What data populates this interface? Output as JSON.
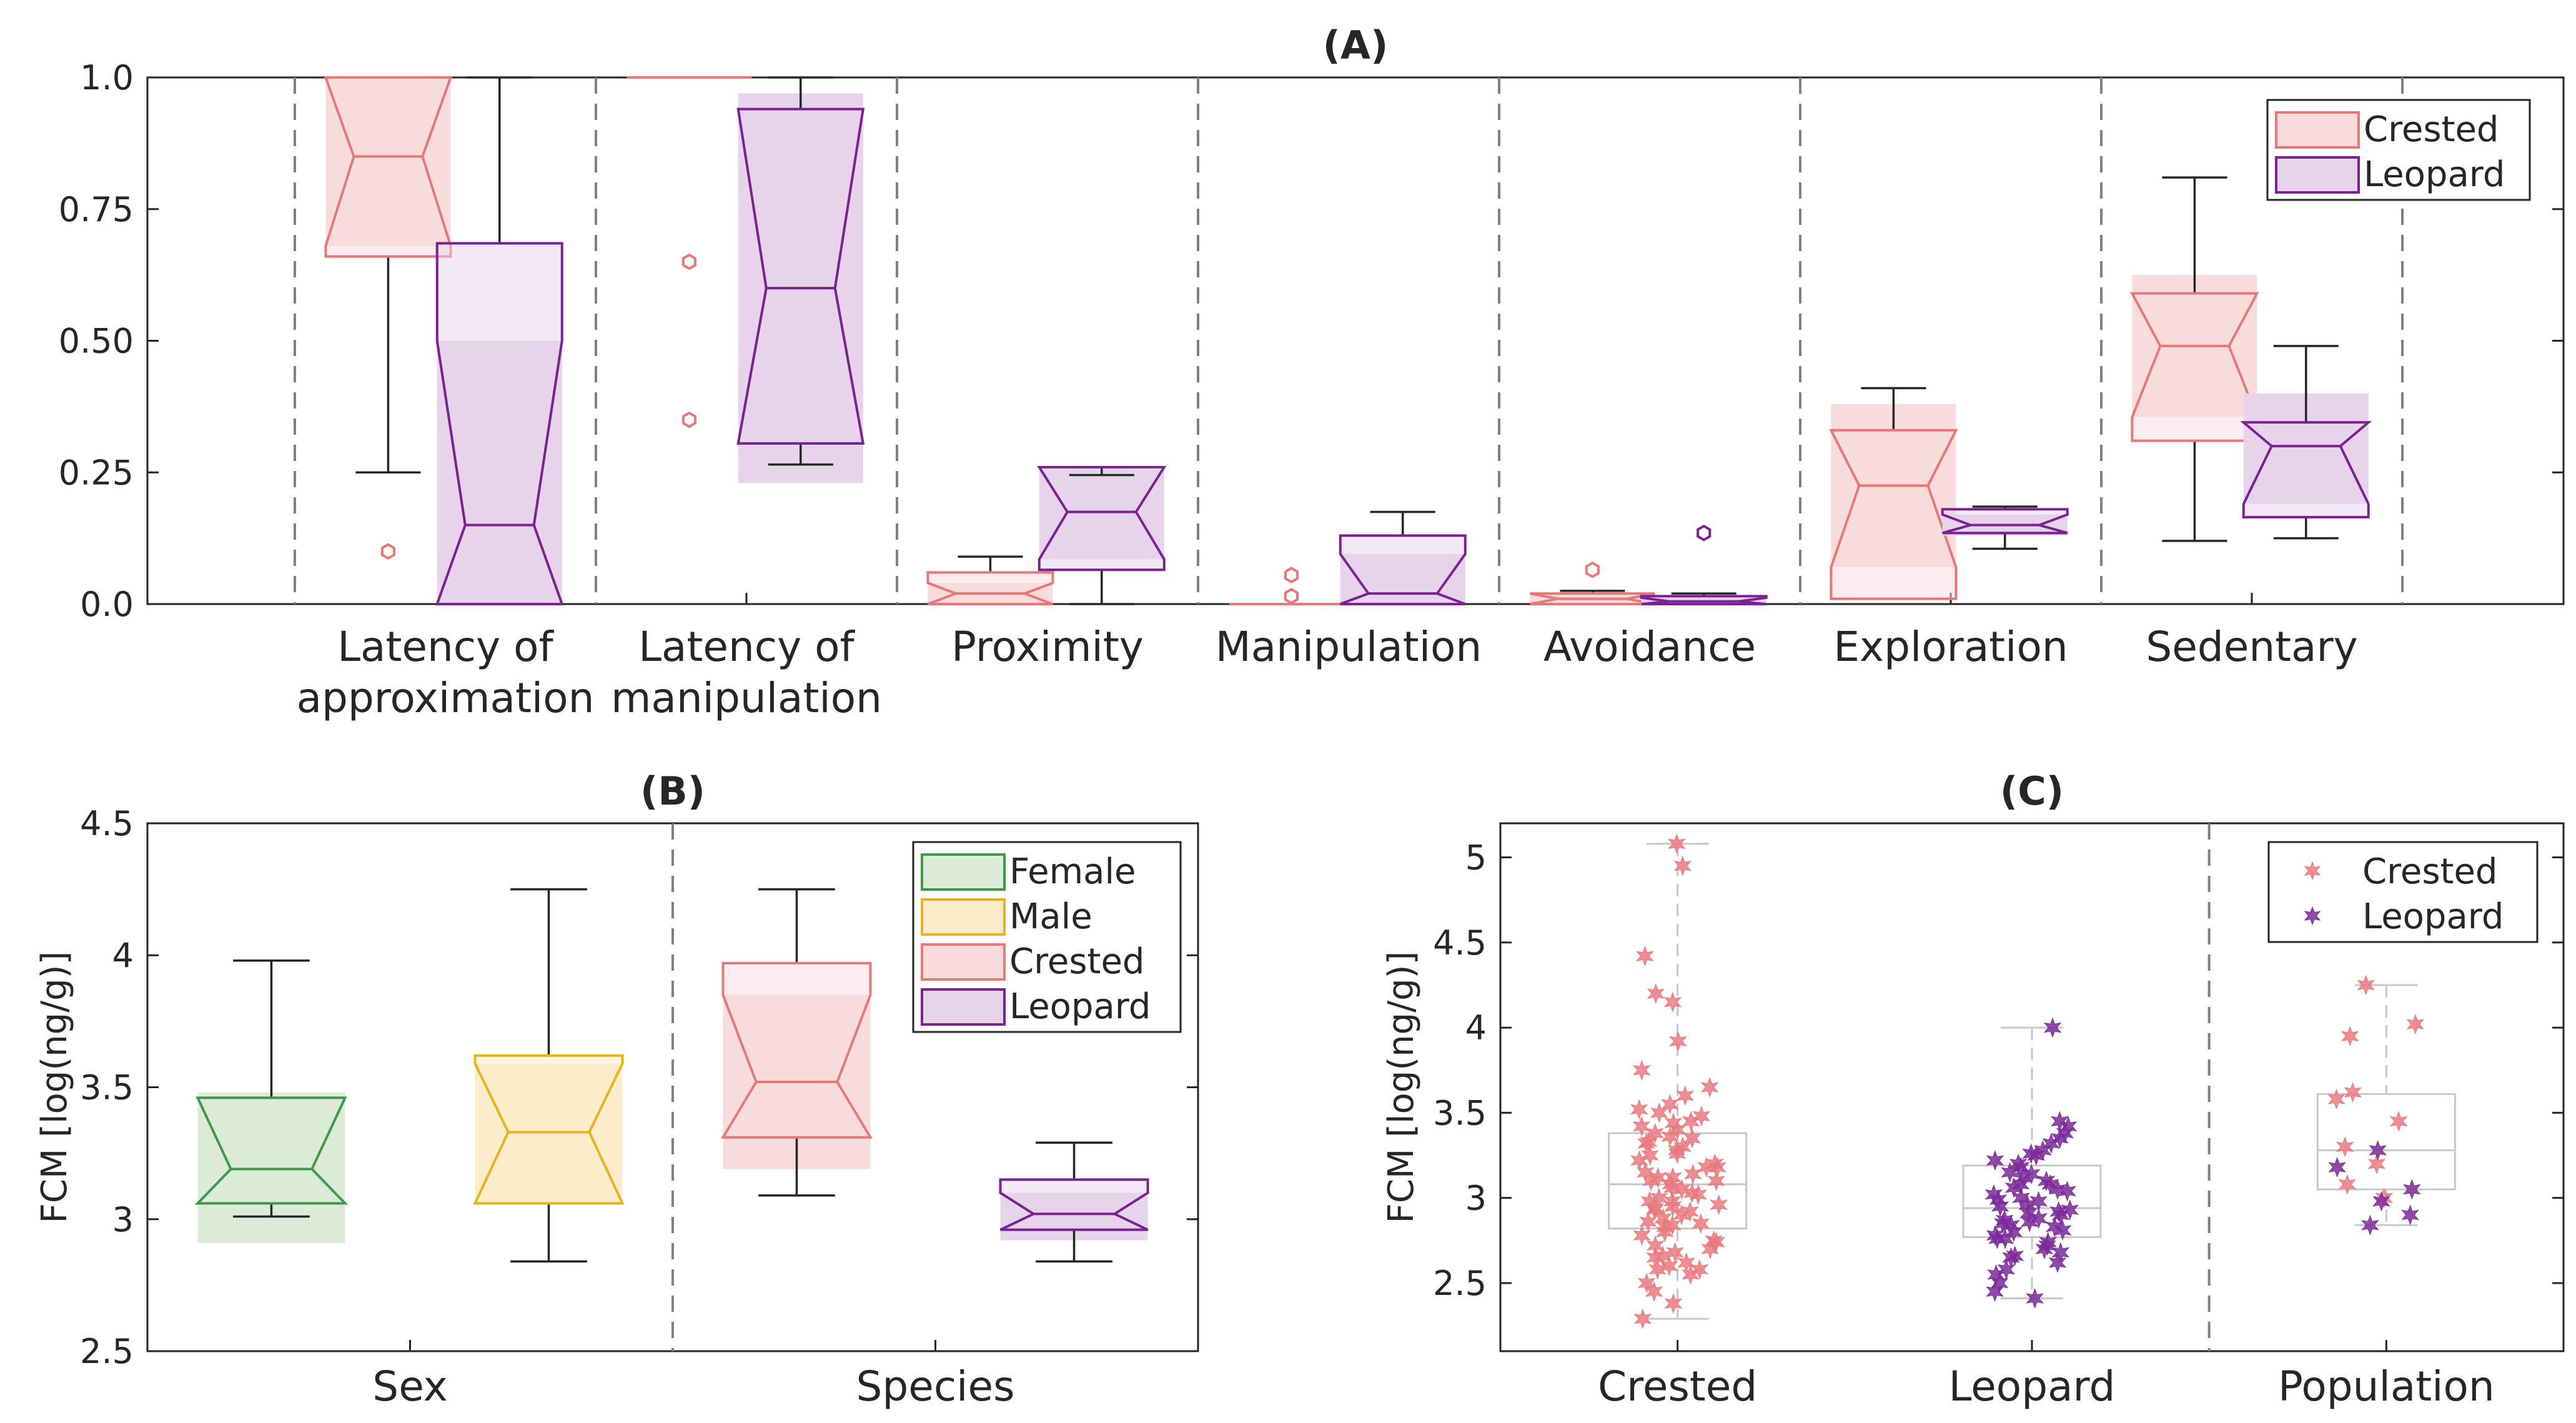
{
  "colors": {
    "crested_edge": "#e8777a",
    "crested_fill": "#f8dcdc",
    "leopard_edge": "#7b2192",
    "leopard_fill": "#e5d4ea",
    "female_edge": "#3f9a48",
    "female_fill": "#dcebd8",
    "male_edge": "#e8b21c",
    "male_fill": "#fbedcc",
    "scatter_crested": "#e8797e",
    "scatter_leopard": "#7a2a9a",
    "whisker": "#262626",
    "grey_box": "#c8c8c8",
    "divider": "#808080"
  },
  "chart_data": [
    {
      "id": "A",
      "title": "(A)",
      "type": "box",
      "ylim": [
        0,
        1
      ],
      "yticks": [
        0,
        0.25,
        0.5,
        0.75,
        1
      ],
      "ytick_labels": [
        "0.0",
        "0.25",
        "0.50",
        "0.75",
        "1.0"
      ],
      "categories": [
        "Latency of\napproximation",
        "Latency of\nmanipulation",
        "Proximity",
        "Manipulation",
        "Avoidance",
        "Exploration",
        "Sedentary"
      ],
      "legend": {
        "entries": [
          "Crested",
          "Leopard"
        ],
        "location": "top-right"
      },
      "series": [
        {
          "name": "Crested",
          "color_key": "crested",
          "boxes": [
            {
              "q1": 0.66,
              "median": 0.85,
              "q3": 1.0,
              "wlo": 0.25,
              "whi": 1.0,
              "nlo": 0.68,
              "nhi": 1.0,
              "outliers": [
                0.1
              ]
            },
            {
              "q1": 1.0,
              "median": 1.0,
              "q3": 1.0,
              "wlo": 1.0,
              "whi": 1.0,
              "nlo": 1.0,
              "nhi": 1.0,
              "outliers": [
                0.65,
                0.35
              ]
            },
            {
              "q1": 0.0,
              "median": 0.02,
              "q3": 0.06,
              "wlo": 0.0,
              "whi": 0.09,
              "nlo": 0.0,
              "nhi": 0.04,
              "outliers": []
            },
            {
              "q1": 0.0,
              "median": 0.0,
              "q3": 0.0,
              "wlo": 0.0,
              "whi": 0.0,
              "nlo": 0.0,
              "nhi": 0.0,
              "outliers": [
                0.055,
                0.015
              ]
            },
            {
              "q1": 0.0,
              "median": 0.01,
              "q3": 0.02,
              "wlo": 0.0,
              "whi": 0.025,
              "nlo": 0.0,
              "nhi": 0.02,
              "outliers": [
                0.065
              ]
            },
            {
              "q1": 0.01,
              "median": 0.225,
              "q3": 0.33,
              "wlo": 0.01,
              "whi": 0.41,
              "nlo": 0.07,
              "nhi": 0.38,
              "outliers": []
            },
            {
              "q1": 0.31,
              "median": 0.49,
              "q3": 0.59,
              "wlo": 0.12,
              "whi": 0.81,
              "nlo": 0.355,
              "nhi": 0.625,
              "outliers": []
            }
          ]
        },
        {
          "name": "Leopard",
          "color_key": "leopard",
          "boxes": [
            {
              "q1": 0.0,
              "median": 0.15,
              "q3": 0.685,
              "wlo": 0.0,
              "whi": 1.0,
              "nlo": 0.0,
              "nhi": 0.5,
              "outliers": []
            },
            {
              "q1": 0.305,
              "median": 0.6,
              "q3": 0.94,
              "wlo": 0.265,
              "whi": 1.0,
              "nlo": 0.23,
              "nhi": 0.97,
              "outliers": []
            },
            {
              "q1": 0.065,
              "median": 0.175,
              "q3": 0.26,
              "wlo": 0.0,
              "whi": 0.245,
              "nlo": 0.085,
              "nhi": 0.26,
              "outliers": []
            },
            {
              "q1": 0.0,
              "median": 0.02,
              "q3": 0.13,
              "wlo": 0.0,
              "whi": 0.175,
              "nlo": 0.0,
              "nhi": 0.095,
              "outliers": []
            },
            {
              "q1": 0.0,
              "median": 0.005,
              "q3": 0.015,
              "wlo": 0.0,
              "whi": 0.02,
              "nlo": 0.0,
              "nhi": 0.012,
              "outliers": [
                0.135
              ]
            },
            {
              "q1": 0.135,
              "median": 0.15,
              "q3": 0.18,
              "wlo": 0.105,
              "whi": 0.185,
              "nlo": 0.13,
              "nhi": 0.17,
              "outliers": []
            },
            {
              "q1": 0.165,
              "median": 0.3,
              "q3": 0.345,
              "wlo": 0.125,
              "whi": 0.49,
              "nlo": 0.19,
              "nhi": 0.4,
              "outliers": []
            }
          ]
        }
      ]
    },
    {
      "id": "B",
      "title": "(B)",
      "type": "box",
      "ylabel": "FCM [log(ng/g)]",
      "ylim": [
        2.5,
        4.5
      ],
      "yticks": [
        2.5,
        3,
        3.5,
        4,
        4.5
      ],
      "ytick_labels": [
        "2.5",
        "3",
        "3.5",
        "4",
        "4.5"
      ],
      "categories": [
        "Sex",
        "Species"
      ],
      "legend": {
        "entries": [
          "Female",
          "Male",
          "Crested",
          "Leopard"
        ],
        "location": "top-right"
      },
      "boxes": [
        {
          "name": "Female",
          "color_key": "female",
          "group": 0,
          "q1": 3.06,
          "median": 3.19,
          "q3": 3.46,
          "wlo": 3.01,
          "whi": 3.98,
          "nlo": 2.91,
          "nhi": 3.48
        },
        {
          "name": "Male",
          "color_key": "male",
          "group": 0,
          "q1": 3.06,
          "median": 3.33,
          "q3": 3.62,
          "wlo": 2.84,
          "whi": 4.25,
          "nlo": 3.06,
          "nhi": 3.59
        },
        {
          "name": "Crested",
          "color_key": "crested",
          "group": 1,
          "q1": 3.31,
          "median": 3.52,
          "q3": 3.97,
          "wlo": 3.09,
          "whi": 4.25,
          "nlo": 3.19,
          "nhi": 3.85
        },
        {
          "name": "Leopard",
          "color_key": "leopard",
          "group": 1,
          "q1": 2.96,
          "median": 3.02,
          "q3": 3.15,
          "wlo": 2.84,
          "whi": 3.29,
          "nlo": 2.92,
          "nhi": 3.1
        }
      ]
    },
    {
      "id": "C",
      "title": "(C)",
      "type": "scatter",
      "ylabel": "FCM [log(ng/g)]",
      "ylim": [
        2.1,
        5.2
      ],
      "yticks": [
        2.5,
        3,
        3.5,
        4,
        4.5,
        5
      ],
      "ytick_labels": [
        "2.5",
        "3",
        "3.5",
        "4",
        "4.5",
        "5"
      ],
      "categories": [
        "Crested",
        "Leopard",
        "Population"
      ],
      "legend": {
        "entries": [
          "Crested",
          "Leopard"
        ],
        "location": "top-right"
      },
      "boxes": [
        {
          "q1": 2.82,
          "median": 3.08,
          "q3": 3.38,
          "wlo": 2.29,
          "whi": 5.08
        },
        {
          "q1": 2.77,
          "median": 2.94,
          "q3": 3.19,
          "wlo": 2.41,
          "whi": 4.0
        },
        {
          "q1": 3.05,
          "median": 3.28,
          "q3": 3.61,
          "wlo": 2.84,
          "whi": 4.25
        }
      ],
      "points": {
        "crested": [
          5.08,
          4.95,
          4.42,
          4.2,
          4.15,
          3.92,
          3.75,
          3.65,
          3.6,
          3.55,
          3.5,
          3.48,
          3.45,
          3.42,
          3.4,
          3.38,
          3.35,
          3.33,
          3.3,
          3.28,
          3.25,
          3.22,
          3.2,
          3.18,
          3.15,
          3.12,
          3.1,
          3.1,
          3.08,
          3.05,
          3.03,
          3.0,
          2.98,
          2.96,
          2.95,
          2.93,
          2.9,
          2.88,
          2.86,
          2.85,
          2.83,
          2.8,
          2.78,
          2.75,
          2.72,
          2.7,
          2.68,
          2.65,
          2.62,
          2.6,
          2.58,
          2.55,
          2.5,
          2.45,
          2.38,
          2.29,
          3.52,
          3.36,
          3.14,
          2.92,
          2.74,
          2.66,
          3.06,
          3.26,
          2.98,
          3.18,
          3.44,
          2.84,
          2.58,
          2.94,
          3.02,
          3.32,
          3.12
        ],
        "leopard": [
          4.0,
          3.45,
          3.42,
          3.38,
          3.35,
          3.32,
          3.28,
          3.25,
          3.22,
          3.2,
          3.18,
          3.15,
          3.12,
          3.1,
          3.08,
          3.06,
          3.04,
          3.02,
          3.0,
          2.98,
          2.96,
          2.95,
          2.93,
          2.91,
          2.9,
          2.88,
          2.86,
          2.85,
          2.83,
          2.81,
          2.8,
          2.78,
          2.76,
          2.74,
          2.72,
          2.7,
          2.68,
          2.65,
          2.62,
          2.58,
          2.55,
          2.5,
          2.45,
          2.41,
          3.05,
          2.92,
          2.87,
          3.14,
          2.76,
          2.66,
          3.26,
          2.99,
          3.08,
          2.84
        ],
        "population_crested": [
          4.25,
          4.02,
          3.95,
          3.62,
          3.58,
          3.45,
          3.3,
          3.2,
          3.08,
          3.0
        ],
        "population_leopard": [
          3.28,
          3.18,
          3.05,
          2.98,
          2.9,
          2.84
        ]
      }
    }
  ]
}
